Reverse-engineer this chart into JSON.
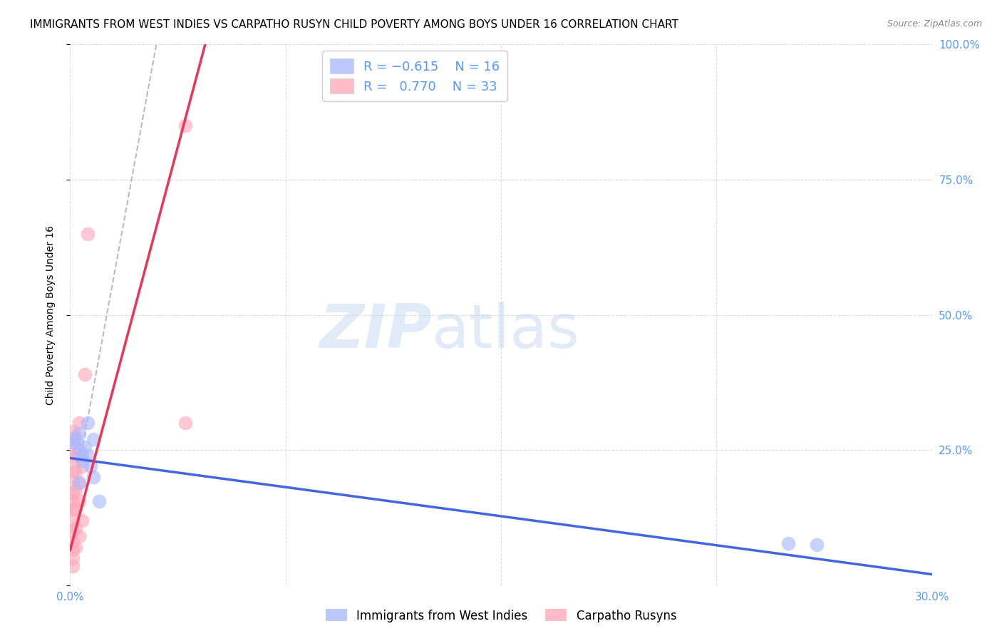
{
  "title": "IMMIGRANTS FROM WEST INDIES VS CARPATHO RUSYN CHILD POVERTY AMONG BOYS UNDER 16 CORRELATION CHART",
  "source": "Source: ZipAtlas.com",
  "ylabel": "Child Poverty Among Boys Under 16",
  "xlim": [
    0.0,
    0.3
  ],
  "ylim": [
    0.0,
    1.0
  ],
  "blue_color": "#aabbff",
  "pink_color": "#ffaabb",
  "blue_line_color": "#4466dd",
  "pink_line_color": "#ee3355",
  "dash_color": "#bbbbbb",
  "right_tick_color": "#5599ff",
  "xtick_color": "#5599ff",
  "blue_scatter_x": [
    0.001,
    0.002,
    0.003,
    0.003,
    0.004,
    0.005,
    0.006,
    0.007,
    0.008,
    0.003,
    0.004,
    0.01,
    0.008,
    0.006,
    0.25,
    0.26
  ],
  "blue_scatter_y": [
    0.265,
    0.27,
    0.28,
    0.25,
    0.24,
    0.255,
    0.24,
    0.22,
    0.2,
    0.19,
    0.23,
    0.155,
    0.27,
    0.3,
    0.078,
    0.075
  ],
  "pink_scatter_x": [
    0.001,
    0.001,
    0.001,
    0.001,
    0.001,
    0.001,
    0.001,
    0.001,
    0.001,
    0.001,
    0.001,
    0.001,
    0.001,
    0.001,
    0.001,
    0.002,
    0.002,
    0.002,
    0.002,
    0.002,
    0.002,
    0.002,
    0.003,
    0.003,
    0.003,
    0.003,
    0.003,
    0.004,
    0.004,
    0.005,
    0.006,
    0.04,
    0.04
  ],
  "pink_scatter_y": [
    0.285,
    0.27,
    0.25,
    0.235,
    0.21,
    0.19,
    0.17,
    0.155,
    0.14,
    0.12,
    0.1,
    0.08,
    0.065,
    0.05,
    0.035,
    0.275,
    0.24,
    0.21,
    0.175,
    0.14,
    0.105,
    0.07,
    0.3,
    0.25,
    0.19,
    0.155,
    0.09,
    0.22,
    0.12,
    0.39,
    0.65,
    0.85,
    0.3
  ],
  "blue_trend_x": [
    0.0,
    0.3
  ],
  "blue_trend_y": [
    0.235,
    0.02
  ],
  "pink_trend_x": [
    0.0,
    0.047
  ],
  "pink_trend_y": [
    0.065,
    1.0
  ],
  "dash_trend_x": [
    0.0,
    0.03
  ],
  "dash_trend_y": [
    0.13,
    1.0
  ],
  "background_color": "#ffffff",
  "grid_color": "#dddddd",
  "title_fontsize": 11,
  "axis_label_fontsize": 10,
  "tick_fontsize": 11,
  "legend_fontsize": 13,
  "watermark_zip": "ZIP",
  "watermark_atlas": "atlas",
  "watermark_zip_color": "#c5d8f0",
  "watermark_atlas_color": "#c5d8f0"
}
